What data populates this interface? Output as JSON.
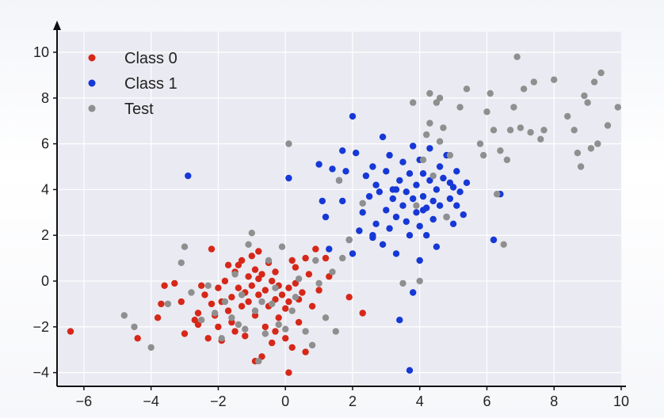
{
  "chart_data": {
    "type": "scatter",
    "xlim": [
      -6.8,
      10.0
    ],
    "ylim": [
      -4.6,
      10.9
    ],
    "x_ticks": [
      -6,
      -4,
      -2,
      0,
      2,
      4,
      6,
      8,
      10
    ],
    "y_ticks": [
      -4,
      -2,
      0,
      2,
      4,
      6,
      8,
      10
    ],
    "x_tick_labels": [
      "−6",
      "−4",
      "−2",
      "0",
      "2",
      "4",
      "6",
      "8",
      "10"
    ],
    "y_tick_labels": [
      "−4",
      "−2",
      "0",
      "2",
      "4",
      "6",
      "8",
      "10"
    ],
    "grid": true,
    "legend_position": "top-left",
    "series": [
      {
        "name": "Class 0",
        "color": "#d62718",
        "points": [
          [
            -6.4,
            -2.2
          ],
          [
            -4.4,
            -2.5
          ],
          [
            -3.8,
            -1.6
          ],
          [
            -3.7,
            -1.0
          ],
          [
            -3.6,
            -0.2
          ],
          [
            -3.3,
            -0.1
          ],
          [
            -3.1,
            -0.9
          ],
          [
            -3.0,
            -2.3
          ],
          [
            -2.7,
            -1.7
          ],
          [
            -2.6,
            -1.4
          ],
          [
            -2.5,
            -0.2
          ],
          [
            -2.4,
            -0.6
          ],
          [
            -2.3,
            -2.5
          ],
          [
            -2.2,
            -1.0
          ],
          [
            -2.2,
            1.4
          ],
          [
            -2.1,
            -1.5
          ],
          [
            -2.0,
            -0.3
          ],
          [
            -1.9,
            -2.6
          ],
          [
            -1.9,
            -0.9
          ],
          [
            -1.8,
            0.0
          ],
          [
            -1.7,
            0.7
          ],
          [
            -1.7,
            -1.3
          ],
          [
            -1.6,
            -0.7
          ],
          [
            -1.5,
            -2.2
          ],
          [
            -1.5,
            0.4
          ],
          [
            -1.4,
            -0.3
          ],
          [
            -1.3,
            -1.1
          ],
          [
            -1.3,
            0.9
          ],
          [
            -1.2,
            -0.5
          ],
          [
            -1.2,
            -2.4
          ],
          [
            -1.1,
            0.2
          ],
          [
            -1.1,
            -0.9
          ],
          [
            -1.0,
            1.1
          ],
          [
            -1.0,
            -0.2
          ],
          [
            -0.9,
            -1.5
          ],
          [
            -0.9,
            0.5
          ],
          [
            -0.8,
            -0.6
          ],
          [
            -0.8,
            0.1
          ],
          [
            -0.7,
            -3.3
          ],
          [
            -0.7,
            0.3
          ],
          [
            -0.6,
            -2.0
          ],
          [
            -0.6,
            -0.4
          ],
          [
            -0.5,
            0.8
          ],
          [
            -0.5,
            -1.1
          ],
          [
            -0.4,
            0.0
          ],
          [
            -0.4,
            -2.7
          ],
          [
            -0.3,
            -0.8
          ],
          [
            -0.3,
            0.4
          ],
          [
            -0.2,
            -1.6
          ],
          [
            -0.2,
            -0.2
          ],
          [
            -0.1,
            -0.6
          ],
          [
            0.0,
            -1.2
          ],
          [
            0.0,
            -2.5
          ],
          [
            0.1,
            -0.9
          ],
          [
            0.1,
            -0.3
          ],
          [
            0.1,
            -4.0
          ],
          [
            0.2,
            -2.9
          ],
          [
            0.3,
            0.6
          ],
          [
            0.3,
            -0.1
          ],
          [
            0.4,
            -1.8
          ],
          [
            0.5,
            -0.5
          ],
          [
            0.6,
            1.0
          ],
          [
            0.7,
            0.3
          ],
          [
            0.8,
            -1.1
          ],
          [
            0.9,
            1.4
          ],
          [
            1.0,
            -0.4
          ],
          [
            1.2,
            1.0
          ],
          [
            1.3,
            0.2
          ],
          [
            1.9,
            -0.7
          ],
          [
            2.3,
            -1.4
          ],
          [
            -0.9,
            -3.5
          ],
          [
            -1.6,
            -1.8
          ],
          [
            -0.3,
            -2.2
          ],
          [
            0.6,
            -3.1
          ],
          [
            -2.6,
            -1.9
          ],
          [
            -0.8,
            1.3
          ],
          [
            0.2,
            0.9
          ],
          [
            -1.4,
            0.7
          ],
          [
            -2.0,
            -2.0
          ],
          [
            0.4,
            -0.8
          ]
        ]
      },
      {
        "name": "Class 1",
        "color": "#1638d6",
        "points": [
          [
            -2.9,
            4.6
          ],
          [
            0.1,
            4.5
          ],
          [
            1.0,
            5.1
          ],
          [
            1.1,
            3.5
          ],
          [
            1.2,
            2.8
          ],
          [
            1.3,
            1.4
          ],
          [
            1.4,
            4.9
          ],
          [
            1.6,
            4.4
          ],
          [
            1.7,
            5.7
          ],
          [
            1.7,
            3.5
          ],
          [
            1.8,
            4.8
          ],
          [
            1.9,
            1.8
          ],
          [
            2.0,
            1.2
          ],
          [
            2.0,
            7.2
          ],
          [
            2.1,
            5.6
          ],
          [
            2.2,
            2.2
          ],
          [
            2.3,
            3.0
          ],
          [
            2.4,
            4.6
          ],
          [
            2.5,
            3.7
          ],
          [
            2.6,
            1.9
          ],
          [
            2.6,
            5.0
          ],
          [
            2.7,
            4.2
          ],
          [
            2.7,
            2.5
          ],
          [
            2.8,
            3.9
          ],
          [
            2.9,
            6.3
          ],
          [
            2.9,
            1.6
          ],
          [
            3.0,
            4.8
          ],
          [
            3.0,
            3.1
          ],
          [
            3.1,
            2.3
          ],
          [
            3.1,
            5.5
          ],
          [
            3.2,
            3.6
          ],
          [
            3.2,
            4.0
          ],
          [
            3.3,
            2.8
          ],
          [
            3.3,
            1.2
          ],
          [
            3.4,
            4.4
          ],
          [
            3.4,
            -1.7
          ],
          [
            3.5,
            3.3
          ],
          [
            3.5,
            5.2
          ],
          [
            3.6,
            2.6
          ],
          [
            3.6,
            3.9
          ],
          [
            3.7,
            4.7
          ],
          [
            3.7,
            2.0
          ],
          [
            3.8,
            3.6
          ],
          [
            3.8,
            5.9
          ],
          [
            3.8,
            -0.5
          ],
          [
            3.9,
            3.0
          ],
          [
            3.9,
            4.2
          ],
          [
            4.0,
            0.9
          ],
          [
            4.0,
            2.4
          ],
          [
            4.0,
            5.3
          ],
          [
            4.1,
            3.7
          ],
          [
            4.1,
            4.7
          ],
          [
            4.2,
            3.2
          ],
          [
            4.2,
            2.0
          ],
          [
            4.3,
            4.4
          ],
          [
            4.3,
            5.8
          ],
          [
            4.4,
            3.5
          ],
          [
            4.4,
            2.7
          ],
          [
            4.5,
            4.0
          ],
          [
            4.5,
            1.5
          ],
          [
            4.6,
            3.3
          ],
          [
            4.6,
            5.0
          ],
          [
            4.7,
            4.5
          ],
          [
            4.8,
            2.8
          ],
          [
            4.8,
            5.5
          ],
          [
            4.9,
            3.6
          ],
          [
            5.0,
            4.1
          ],
          [
            5.0,
            2.5
          ],
          [
            5.1,
            3.3
          ],
          [
            5.1,
            4.8
          ],
          [
            5.2,
            3.9
          ],
          [
            5.3,
            2.9
          ],
          [
            5.4,
            4.3
          ],
          [
            6.2,
            1.8
          ],
          [
            6.4,
            3.8
          ],
          [
            3.7,
            -3.9
          ],
          [
            2.6,
            2.0
          ],
          [
            4.1,
            3.1
          ],
          [
            3.3,
            4.0
          ],
          [
            4.9,
            4.3
          ]
        ]
      },
      {
        "name": "Test",
        "color": "#8f8f8f",
        "points": [
          [
            -4.8,
            -1.5
          ],
          [
            -4.5,
            -2.0
          ],
          [
            -4.0,
            -2.9
          ],
          [
            -3.5,
            -1.0
          ],
          [
            -3.1,
            0.8
          ],
          [
            -3.0,
            1.5
          ],
          [
            -2.8,
            -0.5
          ],
          [
            -2.5,
            -1.7
          ],
          [
            -2.3,
            -0.2
          ],
          [
            -2.1,
            -1.4
          ],
          [
            -1.9,
            -2.5
          ],
          [
            -1.8,
            -0.9
          ],
          [
            -1.6,
            -1.6
          ],
          [
            -1.5,
            0.3
          ],
          [
            -1.4,
            -1.9
          ],
          [
            -1.3,
            -0.6
          ],
          [
            -1.2,
            -2.1
          ],
          [
            -1.1,
            1.6
          ],
          [
            -1.0,
            2.1
          ],
          [
            -0.9,
            -1.3
          ],
          [
            -0.8,
            -3.5
          ],
          [
            -0.7,
            -0.9
          ],
          [
            -0.6,
            -2.3
          ],
          [
            -0.5,
            0.9
          ],
          [
            -0.4,
            -1.0
          ],
          [
            -0.3,
            -0.3
          ],
          [
            -0.2,
            -1.9
          ],
          [
            -0.1,
            1.5
          ],
          [
            0.0,
            -2.1
          ],
          [
            0.1,
            6.0
          ],
          [
            0.2,
            -1.3
          ],
          [
            0.3,
            -0.7
          ],
          [
            0.4,
            0.1
          ],
          [
            0.6,
            -2.2
          ],
          [
            0.8,
            -2.8
          ],
          [
            0.9,
            0.9
          ],
          [
            1.0,
            -0.1
          ],
          [
            1.2,
            -1.6
          ],
          [
            1.4,
            0.4
          ],
          [
            1.5,
            -2.2
          ],
          [
            1.6,
            4.4
          ],
          [
            1.7,
            1.0
          ],
          [
            1.9,
            1.8
          ],
          [
            2.3,
            3.4
          ],
          [
            3.5,
            -0.1
          ],
          [
            3.8,
            7.8
          ],
          [
            3.9,
            3.3
          ],
          [
            4.1,
            5.3
          ],
          [
            4.2,
            6.4
          ],
          [
            4.3,
            8.2
          ],
          [
            4.4,
            4.6
          ],
          [
            4.5,
            7.8
          ],
          [
            4.6,
            8.0
          ],
          [
            4.7,
            6.7
          ],
          [
            4.8,
            2.8
          ],
          [
            4.9,
            5.5
          ],
          [
            5.2,
            7.6
          ],
          [
            5.4,
            8.4
          ],
          [
            5.8,
            6.0
          ],
          [
            5.9,
            5.5
          ],
          [
            6.0,
            7.4
          ],
          [
            6.1,
            8.2
          ],
          [
            6.2,
            6.6
          ],
          [
            6.3,
            3.8
          ],
          [
            6.4,
            5.7
          ],
          [
            6.5,
            1.6
          ],
          [
            6.6,
            5.3
          ],
          [
            6.7,
            6.6
          ],
          [
            6.8,
            7.6
          ],
          [
            6.9,
            9.8
          ],
          [
            7.0,
            6.7
          ],
          [
            7.1,
            8.4
          ],
          [
            7.3,
            6.5
          ],
          [
            7.4,
            8.7
          ],
          [
            7.6,
            6.2
          ],
          [
            7.7,
            6.6
          ],
          [
            8.0,
            8.8
          ],
          [
            8.4,
            7.2
          ],
          [
            8.6,
            6.6
          ],
          [
            8.7,
            5.6
          ],
          [
            8.8,
            5.0
          ],
          [
            8.9,
            8.1
          ],
          [
            9.0,
            7.8
          ],
          [
            9.1,
            5.8
          ],
          [
            9.2,
            8.7
          ],
          [
            9.3,
            6.0
          ],
          [
            9.4,
            9.1
          ],
          [
            9.6,
            6.8
          ],
          [
            9.9,
            7.6
          ],
          [
            4.0,
            0.0
          ],
          [
            4.3,
            6.9
          ],
          [
            4.6,
            6.1
          ]
        ]
      }
    ]
  }
}
